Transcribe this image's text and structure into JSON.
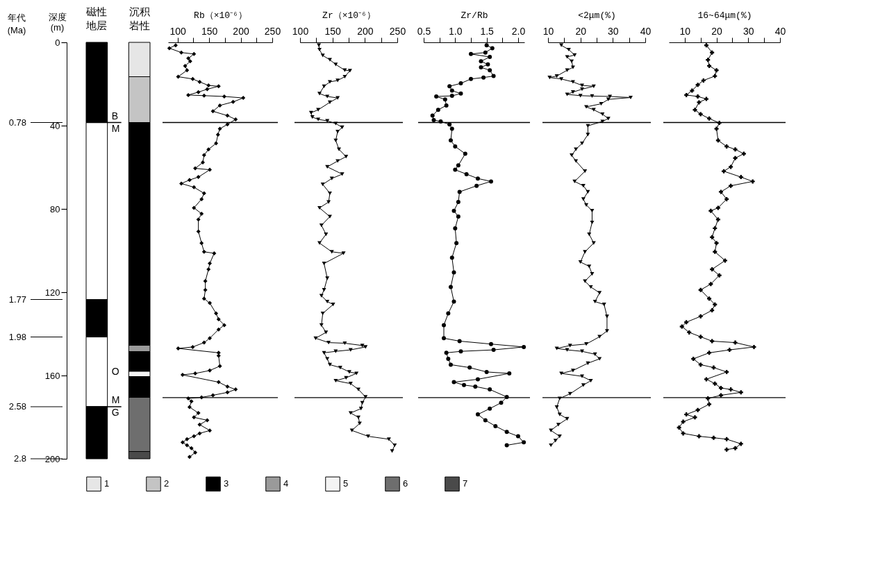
{
  "chart_data": [
    {
      "type": "bar",
      "stacked": true,
      "ylabel": "深度\n(m)",
      "categories": [
        "磁性地层",
        "沉积岩性"
      ],
      "legend": "bottom",
      "ylim": [
        200,
        0
      ],
      "yticks": [
        0,
        40,
        80,
        120,
        160,
        200
      ],
      "series": [
        {
          "color": "#000000",
          "values": [
            38.5,
            null
          ]
        },
        {
          "color": "#ffffff",
          "values": [
            85,
            null
          ]
        },
        {
          "color": "#000000",
          "values": [
            18,
            null
          ]
        },
        {
          "color": "#ffffff",
          "values": [
            33.5,
            null
          ]
        },
        {
          "color": "#000000",
          "values": [
            25,
            null
          ]
        },
        {
          "name": "1",
          "color": "#e6e6e6",
          "values": [
            null,
            16.5
          ]
        },
        {
          "name": "2",
          "color": "#c4c4c4",
          "values": [
            null,
            22
          ]
        },
        {
          "name": "3",
          "color": "#000000",
          "values": [
            null,
            107
          ]
        },
        {
          "name": "4",
          "color": "#9a9a9a",
          "values": [
            null,
            3
          ]
        },
        {
          "color": "#000000",
          "values": [
            null,
            9.5
          ]
        },
        {
          "name": "5",
          "color": "#f4f4f4",
          "values": [
            null,
            2.5
          ]
        },
        {
          "color": "#000000",
          "values": [
            null,
            10
          ]
        },
        {
          "name": "6",
          "color": "#6e6e6e",
          "values": [
            null,
            26
          ]
        },
        {
          "name": "7",
          "color": "#4a4a4a",
          "values": [
            null,
            3.5
          ]
        }
      ],
      "annotations": [
        "年代\n(Ma)",
        "0.78",
        "1.77",
        "1.98",
        "2.58",
        "2.8",
        "B",
        "M",
        "O",
        "M",
        "G"
      ],
      "ref_lines": [
        {
          "axis": "y",
          "value": 38.5
        },
        {
          "axis": "y",
          "value": 175
        }
      ]
    },
    {
      "type": "line",
      "xlabel": "Rb（×10⁻⁶）",
      "marker": "diamond",
      "tick_labels": "x",
      "xlim": [
        85,
        250
      ],
      "xticks": [
        100,
        {
          "value": 125,
          "label": null
        },
        150,
        {
          "value": 175,
          "label": null
        },
        200,
        {
          "value": 225,
          "label": null
        },
        250
      ],
      "ylim": [
        200,
        0
      ],
      "ref_lines": [
        {
          "axis": "y",
          "value": 38.5
        },
        {
          "axis": "y",
          "value": 170.6
        }
      ],
      "series": [
        {
          "color": "#000000",
          "x": [
            97,
            87,
            106,
            126,
            117,
            120,
            112,
            115,
            101,
            124,
            135,
            149,
            165,
            147,
            133,
            117,
            142,
            174,
            204,
            188,
            167,
            156,
            179,
            192,
            179,
            167,
            164,
            161,
            149,
            142,
            140,
            128,
            151,
            133,
            119,
            106,
            126,
            142,
            138,
            126,
            138,
            133,
            133,
            138,
            142,
            158,
            151,
            149,
            144,
            144,
            142,
            151,
            161,
            165,
            174,
            165,
            151,
            142,
            124,
            101,
            165,
            165,
            167,
            151,
            128,
            108,
            165,
            179,
            192,
            179,
            156,
            138,
            117,
            122,
            119,
            133,
            126,
            147,
            135,
            151,
            135,
            126,
            115,
            108,
            115,
            122,
            128,
            119
          ],
          "values": [
            1.4,
            2.8,
            4.9,
            5.6,
            7.7,
            9.1,
            11.3,
            13.4,
            16.5,
            17.6,
            19.0,
            20.7,
            21.1,
            22.5,
            23.9,
            25.3,
            25.6,
            26.0,
            26.7,
            28.6,
            30.3,
            33.1,
            35.2,
            37.0,
            39.4,
            41.5,
            44.3,
            48.5,
            51.4,
            54.2,
            57.7,
            60.5,
            61.2,
            64.7,
            66.1,
            67.8,
            69.6,
            72.5,
            75.3,
            79.5,
            82.3,
            85.1,
            90.8,
            96.4,
            100.6,
            101.3,
            106.2,
            109.0,
            114.7,
            118.9,
            123.1,
            125.2,
            130.2,
            133.0,
            135.8,
            137.9,
            142.1,
            144.2,
            146.3,
            147.0,
            149.1,
            150.5,
            155.5,
            157.6,
            159.0,
            159.7,
            163.2,
            165.3,
            166.7,
            168.1,
            169.5,
            170.5,
            171.0,
            172.4,
            175.2,
            178.0,
            180.1,
            181.5,
            183.6,
            186.4,
            187.8,
            189.2,
            190.6,
            192.1,
            193.5,
            194.9,
            197.0,
            199.1
          ]
        }
      ]
    },
    {
      "type": "line",
      "xlabel": "Zr（×10⁻⁶）",
      "marker": "triangle",
      "tick_labels": "x",
      "xlim": [
        100,
        250
      ],
      "xticks": [
        100,
        {
          "value": 125,
          "label": null
        },
        150,
        {
          "value": 175,
          "label": null
        },
        200,
        {
          "value": 225,
          "label": null
        },
        250
      ],
      "ylim": [
        200,
        0
      ],
      "ref_lines": [
        {
          "axis": "y",
          "value": 38.5
        },
        {
          "axis": "y",
          "value": 170.6
        }
      ],
      "series": [
        {
          "color": "#000000",
          "x": [
            129,
            130,
            135,
            146,
            155,
            169,
            177,
            169,
            158,
            146,
            137,
            130,
            142,
            158,
            146,
            128,
            117,
            119,
            128,
            142,
            155,
            165,
            158,
            155,
            160,
            171,
            158,
            142,
            165,
            149,
            135,
            146,
            144,
            130,
            146,
            133,
            140,
            130,
            149,
            167,
            137,
            142,
            137,
            133,
            142,
            151,
            135,
            133,
            140,
            124,
            144,
            169,
            196,
            201,
            178,
            155,
            137,
            142,
            146,
            162,
            176,
            187,
            171,
            155,
            178,
            190,
            201,
            196,
            194,
            178,
            190,
            192,
            180,
            205,
            237,
            246,
            242
          ],
          "values": [
            1.4,
            3.5,
            6.3,
            8.4,
            10.6,
            13.4,
            13.6,
            16.5,
            18.3,
            19.0,
            21.1,
            24.6,
            26.0,
            26.7,
            28.8,
            32.4,
            33.8,
            35.9,
            37.0,
            37.7,
            39.0,
            40.8,
            42.9,
            47.1,
            51.4,
            54.9,
            57.0,
            59.8,
            63.3,
            65.4,
            68.2,
            72.5,
            76.7,
            79.5,
            83.7,
            87.9,
            92.2,
            96.4,
            100.6,
            101.3,
            106.2,
            113.3,
            118.9,
            121.7,
            124.5,
            125.9,
            130.2,
            135.8,
            139.3,
            142.1,
            144.2,
            144.5,
            145.6,
            146.3,
            147.7,
            148.4,
            149.1,
            152.0,
            154.8,
            156.2,
            158.3,
            159.0,
            161.1,
            162.5,
            163.9,
            166.7,
            170.3,
            173.1,
            175.9,
            178.0,
            180.1,
            183.0,
            186.4,
            189.2,
            190.6,
            193.5,
            196.3
          ]
        }
      ]
    },
    {
      "type": "line",
      "xlabel": "Zr/Rb",
      "marker": "circle",
      "tick_labels": "x",
      "xlim": [
        0.5,
        2.1
      ],
      "xticks": [
        {
          "value": 0.5,
          "label": "0.5"
        },
        {
          "value": 0.75,
          "label": null
        },
        {
          "value": 1,
          "label": "1.0"
        },
        {
          "value": 1.25,
          "label": null
        },
        {
          "value": 1.5,
          "label": "1.5"
        },
        {
          "value": 1.75,
          "label": null
        },
        {
          "value": 2,
          "label": "2.0"
        }
      ],
      "ylim": [
        200,
        0
      ],
      "ref_lines": [
        {
          "axis": "y",
          "value": 38.5
        },
        {
          "axis": "y",
          "value": 170.6
        }
      ],
      "series": [
        {
          "color": "#000000",
          "x": [
            1.5,
            1.59,
            1.48,
            1.25,
            1.55,
            1.41,
            1.52,
            1.41,
            1.55,
            1.61,
            1.45,
            1.25,
            1.09,
            0.91,
            0.95,
            1.09,
            0.95,
            0.7,
            0.84,
            0.86,
            0.73,
            0.64,
            0.66,
            0.77,
            0.91,
            0.95,
            0.93,
            1.0,
            1.16,
            1.05,
            1.0,
            1.18,
            1.36,
            1.57,
            1.34,
            1.07,
            1.05,
            0.98,
            1.05,
            1.0,
            1.02,
            0.95,
            0.98,
            0.93,
            0.98,
            0.89,
            0.82,
            0.82,
            1.07,
            1.57,
            2.09,
            1.61,
            1.09,
            0.86,
            0.89,
            0.93,
            1.23,
            1.5,
            1.86,
            1.36,
            0.98,
            1.14,
            1.32,
            1.55,
            1.82,
            1.73,
            1.55,
            1.36,
            1.48,
            1.64,
            1.82,
            2.0,
            2.09,
            1.82
          ],
          "values": [
            1.4,
            2.8,
            4.9,
            5.6,
            7.0,
            9.1,
            10.6,
            12.0,
            13.4,
            16.2,
            16.9,
            17.6,
            19.7,
            21.1,
            23.2,
            24.6,
            25.7,
            26.0,
            27.4,
            30.3,
            32.4,
            35.2,
            37.3,
            38.0,
            39.4,
            41.5,
            47.1,
            50.0,
            53.5,
            59.1,
            61.2,
            63.3,
            65.4,
            66.8,
            68.9,
            71.8,
            76.7,
            80.9,
            83.7,
            89.3,
            96.4,
            103.4,
            110.5,
            117.5,
            124.5,
            130.2,
            135.8,
            142.1,
            143.5,
            144.9,
            146.3,
            147.7,
            148.4,
            149.1,
            152.0,
            154.8,
            156.2,
            158.3,
            159.0,
            161.8,
            163.2,
            164.6,
            165.3,
            166.7,
            170.3,
            173.1,
            175.9,
            178.7,
            181.5,
            184.3,
            187.1,
            189.2,
            192.1,
            193.5
          ]
        }
      ]
    },
    {
      "type": "line",
      "xlabel": "<2μm(%)",
      "marker": "triangle",
      "tick_labels": "x",
      "xlim": [
        10,
        40
      ],
      "xticks": [
        10,
        {
          "value": 15,
          "label": null
        },
        20,
        {
          "value": 25,
          "label": null
        },
        30,
        {
          "value": 35,
          "label": null
        },
        40
      ],
      "ylim": [
        200,
        0
      ],
      "ref_lines": [
        {
          "axis": "y",
          "value": 38.5
        },
        {
          "axis": "y",
          "value": 170.6
        }
      ],
      "series": [
        {
          "color": "#000000",
          "x": [
            14.1,
            16.4,
            18.2,
            15.9,
            17.3,
            17.7,
            15.9,
            12.7,
            10.5,
            14.1,
            17.7,
            20.5,
            24.1,
            20.5,
            17.7,
            15.9,
            20.0,
            23.6,
            29.1,
            35.5,
            28.6,
            26.4,
            21.8,
            24.1,
            26.8,
            28.6,
            26.8,
            22.3,
            22.3,
            20.5,
            18.6,
            17.3,
            18.6,
            21.4,
            18.2,
            20.9,
            22.3,
            20.9,
            21.8,
            23.6,
            23.6,
            22.7,
            24.1,
            21.4,
            20.0,
            22.7,
            23.6,
            21.4,
            23.2,
            25.9,
            24.5,
            27.3,
            28.2,
            28.2,
            25.9,
            21.8,
            16.8,
            12.7,
            15.9,
            20.5,
            24.5,
            25.9,
            22.3,
            17.7,
            14.1,
            20.5,
            23.2,
            20.9,
            16.8,
            13.6,
            12.7,
            13.6,
            15.9,
            13.2,
            10.9,
            13.6,
            12.3,
            10.9
          ],
          "values": [
            1.4,
            3.5,
            6.1,
            7.0,
            9.1,
            12.0,
            13.4,
            16.2,
            16.9,
            17.6,
            19.0,
            20.7,
            21.1,
            22.5,
            23.9,
            25.0,
            25.6,
            25.8,
            26.0,
            26.5,
            27.4,
            29.5,
            31.0,
            32.4,
            34.5,
            36.6,
            38.0,
            40.1,
            44.3,
            48.5,
            51.4,
            54.2,
            57.0,
            61.9,
            66.8,
            68.9,
            71.8,
            75.3,
            78.1,
            80.9,
            86.5,
            92.2,
            96.4,
            100.6,
            105.5,
            107.6,
            111.2,
            114.7,
            117.5,
            120.3,
            124.5,
            125.9,
            131.6,
            138.6,
            141.4,
            144.9,
            145.6,
            147.0,
            147.7,
            148.4,
            149.8,
            152.0,
            154.1,
            157.6,
            159.0,
            160.4,
            162.5,
            164.6,
            168.8,
            171.0,
            175.2,
            178.7,
            180.8,
            183.6,
            186.4,
            189.2,
            191.3,
            193.5
          ]
        }
      ]
    },
    {
      "type": "line",
      "xlabel": "16~64μm(%)",
      "marker": "cross",
      "tick_labels": "x",
      "xlim": [
        5,
        40
      ],
      "xticks": [
        10,
        {
          "value": 15,
          "label": null
        },
        20,
        {
          "value": 25,
          "label": null
        },
        30,
        {
          "value": 35,
          "label": null
        },
        40
      ],
      "ylim": [
        200,
        0
      ],
      "ref_lines": [
        {
          "axis": "y",
          "value": 38.5
        },
        {
          "axis": "y",
          "value": 170.6
        }
      ],
      "series": [
        {
          "color": "#000000",
          "x": [
            16.8,
            18.6,
            17.3,
            17.7,
            20.0,
            19.5,
            15.9,
            14.1,
            12.3,
            10.5,
            14.1,
            16.8,
            14.5,
            13.2,
            15.0,
            17.7,
            20.9,
            20.0,
            20.5,
            23.2,
            25.9,
            28.6,
            25.9,
            24.5,
            22.3,
            27.7,
            31.4,
            24.5,
            21.4,
            23.2,
            20.5,
            18.2,
            20.5,
            19.5,
            18.6,
            20.0,
            19.5,
            22.7,
            18.6,
            20.9,
            18.2,
            15.0,
            17.7,
            19.5,
            18.6,
            15.0,
            10.5,
            9.1,
            11.4,
            15.0,
            18.6,
            25.9,
            31.8,
            24.1,
            17.7,
            12.7,
            15.0,
            19.1,
            23.2,
            16.8,
            19.5,
            21.4,
            24.5,
            27.7,
            21.4,
            17.3,
            17.7,
            14.1,
            10.5,
            13.2,
            9.5,
            8.2,
            9.5,
            14.5,
            19.1,
            23.2,
            27.7,
            25.9,
            23.2
          ],
          "values": [
            1.4,
            4.9,
            8.4,
            11.3,
            13.4,
            16.2,
            18.3,
            20.4,
            23.2,
            25.3,
            26.0,
            27.2,
            28.8,
            32.4,
            34.5,
            36.6,
            38.7,
            41.5,
            47.1,
            50.0,
            51.4,
            53.5,
            55.6,
            59.8,
            61.9,
            64.7,
            66.8,
            68.9,
            71.8,
            75.3,
            79.5,
            80.9,
            85.1,
            89.3,
            93.6,
            96.4,
            100.6,
            104.8,
            109.0,
            111.9,
            116.1,
            118.9,
            123.1,
            125.9,
            128.7,
            131.6,
            134.4,
            136.5,
            139.3,
            141.4,
            143.5,
            144.2,
            146.3,
            147.7,
            149.1,
            152.0,
            154.8,
            156.2,
            158.3,
            161.8,
            163.9,
            166.0,
            166.7,
            168.1,
            169.5,
            171.0,
            173.8,
            176.6,
            178.7,
            180.1,
            182.2,
            185.0,
            187.8,
            189.2,
            189.9,
            190.6,
            192.8,
            194.9,
            195.6
          ]
        }
      ]
    }
  ]
}
